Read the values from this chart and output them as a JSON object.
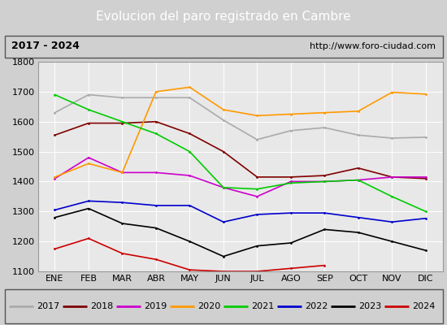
{
  "title": "Evolucion del paro registrado en Cambre",
  "subtitle_left": "2017 - 2024",
  "subtitle_right": "http://www.foro-ciudad.com",
  "ylim": [
    1100,
    1800
  ],
  "yticks": [
    1100,
    1200,
    1300,
    1400,
    1500,
    1600,
    1700,
    1800
  ],
  "months": [
    "ENE",
    "FEB",
    "MAR",
    "ABR",
    "MAY",
    "JUN",
    "JUL",
    "AGO",
    "SEP",
    "OCT",
    "NOV",
    "DIC"
  ],
  "plot_bg_color": "#e8e8e8",
  "outer_bg_color": "#d0d0d0",
  "series": {
    "2017": {
      "values": [
        1630,
        1690,
        1680,
        1680,
        1680,
        1605,
        1540,
        1570,
        1580,
        1555,
        1545,
        1548
      ],
      "color": "#aaaaaa"
    },
    "2018": {
      "values": [
        1555,
        1595,
        1595,
        1600,
        1560,
        1500,
        1415,
        1415,
        1420,
        1445,
        1415,
        1410
      ],
      "color": "#800000"
    },
    "2019": {
      "values": [
        1410,
        1480,
        1430,
        1430,
        1420,
        1380,
        1350,
        1400,
        1400,
        1405,
        1415,
        1415
      ],
      "color": "#cc00cc"
    },
    "2020": {
      "values": [
        1415,
        1460,
        1430,
        1700,
        1715,
        1640,
        1620,
        1625,
        1630,
        1635,
        1698,
        1692
      ],
      "color": "#ff9900"
    },
    "2021": {
      "values": [
        1690,
        1640,
        1600,
        1560,
        1500,
        1380,
        1375,
        1395,
        1400,
        1405,
        1350,
        1300
      ],
      "color": "#00cc00"
    },
    "2022": {
      "values": [
        1305,
        1335,
        1330,
        1320,
        1320,
        1265,
        1290,
        1295,
        1295,
        1280,
        1265,
        1277
      ],
      "color": "#0000cc"
    },
    "2023": {
      "values": [
        1280,
        1310,
        1260,
        1245,
        1200,
        1150,
        1185,
        1195,
        1240,
        1230,
        1200,
        1170
      ],
      "color": "#000000"
    },
    "2024": {
      "values": [
        1175,
        1210,
        1160,
        1140,
        1105,
        1100,
        1100,
        1110,
        1120,
        null,
        null,
        null
      ],
      "color": "#cc0000"
    }
  },
  "legend_order": [
    "2017",
    "2018",
    "2019",
    "2020",
    "2021",
    "2022",
    "2023",
    "2024"
  ],
  "title_bg_color": "#4f81bd",
  "title_text_color": "#ffffff",
  "title_fontsize": 11,
  "tick_fontsize": 8,
  "legend_fontsize": 8
}
